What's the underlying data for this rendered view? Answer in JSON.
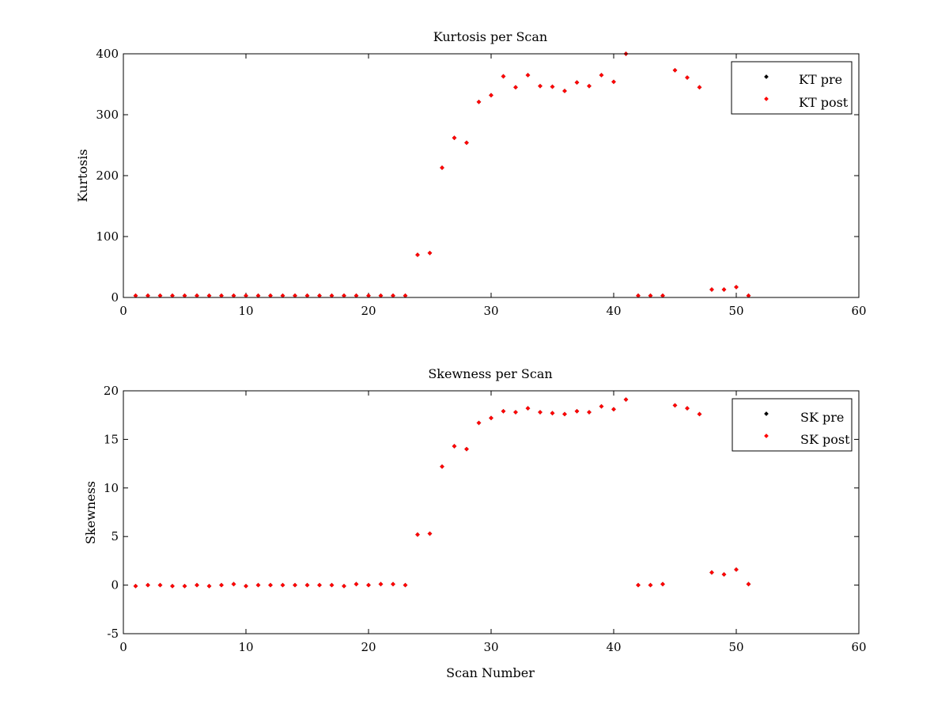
{
  "chart_data": [
    {
      "type": "scatter",
      "title": "Kurtosis per Scan",
      "xlabel": "",
      "ylabel": "Kurtosis",
      "xlim": [
        0,
        60
      ],
      "ylim": [
        0,
        400
      ],
      "xticks": [
        0,
        10,
        20,
        30,
        40,
        50,
        60
      ],
      "yticks": [
        0,
        100,
        200,
        300,
        400
      ],
      "legend_position": "top-right",
      "grid": false,
      "series": [
        {
          "name": "KT pre",
          "color": "#000000",
          "x": [
            1,
            2,
            3,
            4,
            5,
            6,
            7,
            8,
            9,
            10,
            11,
            12,
            13,
            14,
            15,
            16,
            17,
            18,
            19,
            20,
            21,
            22,
            23,
            24,
            25,
            26,
            27,
            28,
            29,
            30,
            31,
            32,
            33,
            34,
            35,
            36,
            37,
            38,
            39,
            40,
            41,
            42,
            43,
            44,
            45,
            46,
            47,
            48,
            49,
            50,
            51
          ],
          "y": [
            3,
            3,
            3,
            3,
            3,
            3,
            3,
            3,
            3,
            3,
            3,
            3,
            3,
            3,
            3,
            3,
            3,
            3,
            3,
            3,
            3,
            3,
            3,
            70,
            73,
            213,
            262,
            254,
            321,
            332,
            363,
            345,
            365,
            347,
            346,
            339,
            353,
            347,
            365,
            354,
            400,
            3,
            3,
            3,
            373,
            361,
            345,
            13,
            13,
            17,
            3
          ]
        },
        {
          "name": "KT post",
          "color": "#ff0000",
          "x": [
            1,
            2,
            3,
            4,
            5,
            6,
            7,
            8,
            9,
            10,
            11,
            12,
            13,
            14,
            15,
            16,
            17,
            18,
            19,
            20,
            21,
            22,
            23,
            24,
            25,
            26,
            27,
            28,
            29,
            30,
            31,
            32,
            33,
            34,
            35,
            36,
            37,
            38,
            39,
            40,
            41,
            42,
            43,
            44,
            45,
            46,
            47,
            48,
            49,
            50,
            51
          ],
          "y": [
            3,
            3,
            3,
            3,
            3,
            3,
            3,
            3,
            3,
            3,
            3,
            3,
            3,
            3,
            3,
            3,
            3,
            3,
            3,
            3,
            3,
            3,
            3,
            70,
            73,
            213,
            262,
            254,
            321,
            332,
            363,
            345,
            365,
            347,
            346,
            339,
            353,
            347,
            365,
            354,
            400,
            3,
            3,
            3,
            373,
            361,
            345,
            13,
            13,
            17,
            3
          ]
        }
      ]
    },
    {
      "type": "scatter",
      "title": "Skewness per Scan",
      "xlabel": "Scan Number",
      "ylabel": "Skewness",
      "xlim": [
        0,
        60
      ],
      "ylim": [
        -5,
        20
      ],
      "xticks": [
        0,
        10,
        20,
        30,
        40,
        50,
        60
      ],
      "yticks": [
        -5,
        0,
        5,
        10,
        15,
        20
      ],
      "legend_position": "top-right",
      "grid": false,
      "series": [
        {
          "name": "SK pre",
          "color": "#000000",
          "x": [
            1,
            2,
            3,
            4,
            5,
            6,
            7,
            8,
            9,
            10,
            11,
            12,
            13,
            14,
            15,
            16,
            17,
            18,
            19,
            20,
            21,
            22,
            23,
            24,
            25,
            26,
            27,
            28,
            29,
            30,
            31,
            32,
            33,
            34,
            35,
            36,
            37,
            38,
            39,
            40,
            41,
            42,
            43,
            44,
            45,
            46,
            47,
            48,
            49,
            50,
            51
          ],
          "y": [
            -0.1,
            0,
            0,
            -0.1,
            -0.1,
            0,
            -0.1,
            0,
            0.1,
            -0.1,
            0,
            0,
            0,
            0,
            0,
            0,
            0,
            -0.1,
            0.1,
            0,
            0.1,
            0.1,
            0,
            5.2,
            5.3,
            12.2,
            14.3,
            14.0,
            16.7,
            17.2,
            17.9,
            17.8,
            18.2,
            17.8,
            17.7,
            17.6,
            17.9,
            17.8,
            18.4,
            18.1,
            19.1,
            0,
            0,
            0.1,
            18.5,
            18.2,
            17.6,
            1.3,
            1.1,
            1.6,
            0.1
          ]
        },
        {
          "name": "SK post",
          "color": "#ff0000",
          "x": [
            1,
            2,
            3,
            4,
            5,
            6,
            7,
            8,
            9,
            10,
            11,
            12,
            13,
            14,
            15,
            16,
            17,
            18,
            19,
            20,
            21,
            22,
            23,
            24,
            25,
            26,
            27,
            28,
            29,
            30,
            31,
            32,
            33,
            34,
            35,
            36,
            37,
            38,
            39,
            40,
            41,
            42,
            43,
            44,
            45,
            46,
            47,
            48,
            49,
            50,
            51
          ],
          "y": [
            -0.1,
            0,
            0,
            -0.1,
            -0.1,
            0,
            -0.1,
            0,
            0.1,
            -0.1,
            0,
            0,
            0,
            0,
            0,
            0,
            0,
            -0.1,
            0.1,
            0,
            0.1,
            0.1,
            0,
            5.2,
            5.3,
            12.2,
            14.3,
            14.0,
            16.7,
            17.2,
            17.9,
            17.8,
            18.2,
            17.8,
            17.7,
            17.6,
            17.9,
            17.8,
            18.4,
            18.1,
            19.1,
            0,
            0,
            0.1,
            18.5,
            18.2,
            17.6,
            1.3,
            1.1,
            1.6,
            0.1
          ]
        }
      ]
    }
  ]
}
